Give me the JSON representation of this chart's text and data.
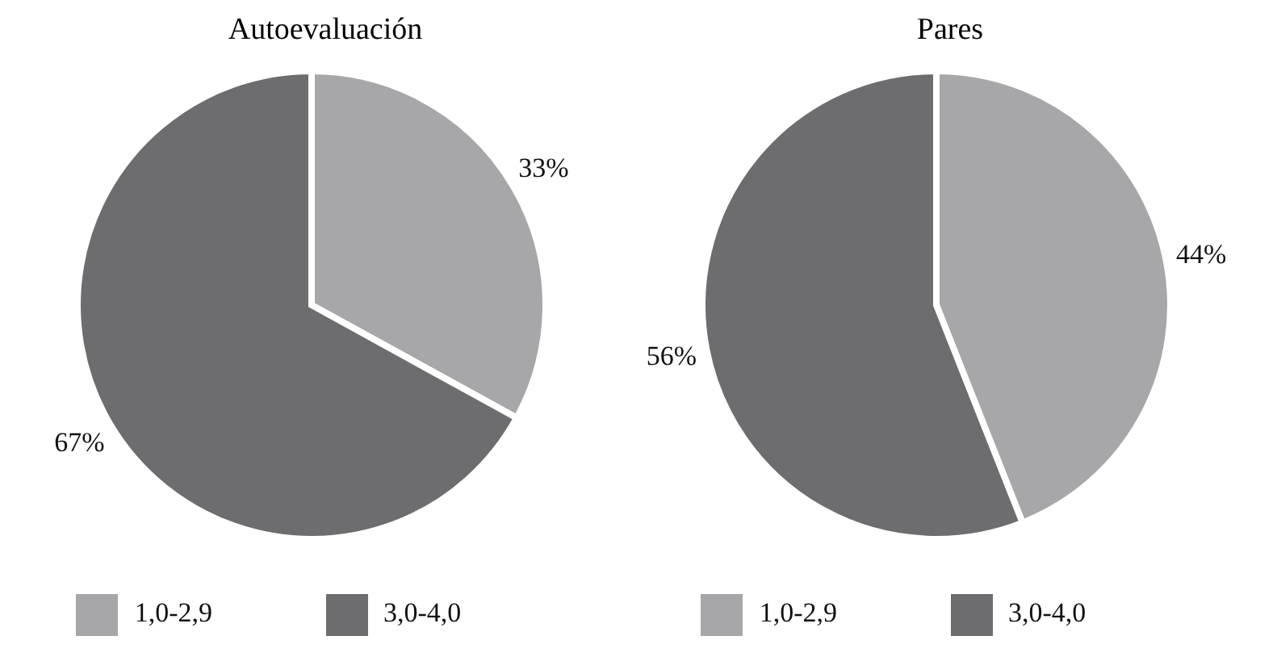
{
  "chart_data": [
    {
      "type": "pie",
      "title": "Autoevaluación",
      "categories": [
        "1,0-2,9",
        "3,0-4,0"
      ],
      "values": [
        33,
        67
      ],
      "value_labels": [
        "33%",
        "67%"
      ],
      "colors": [
        "#a7a7a9",
        "#6d6d6f"
      ],
      "legend": "bottom"
    },
    {
      "type": "pie",
      "title": "Pares",
      "categories": [
        "1,0-2,9",
        "3,0-4,0"
      ],
      "values": [
        44,
        56
      ],
      "value_labels": [
        "44%",
        "56%"
      ],
      "colors": [
        "#a7a7a9",
        "#6d6d6f"
      ],
      "legend": "bottom"
    }
  ]
}
